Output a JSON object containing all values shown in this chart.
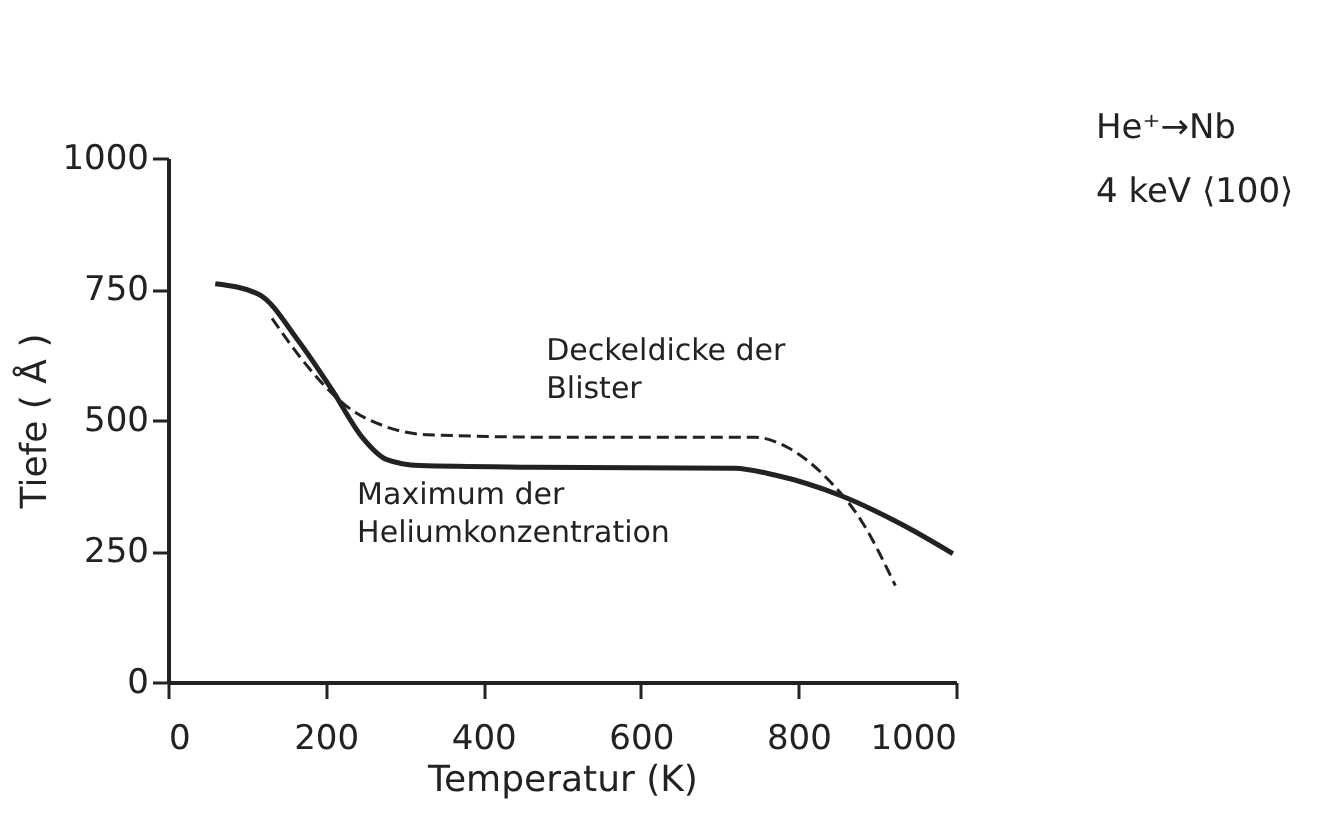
{
  "chart_data": {
    "type": "line",
    "xlabel": "Temperatur   (K)",
    "ylabel": "Tiefe ( Å )",
    "xlim": [
      0,
      1000
    ],
    "ylim": [
      0,
      1000
    ],
    "xticks": [
      0,
      200,
      400,
      600,
      800,
      1000
    ],
    "yticks": [
      0,
      250,
      500,
      750,
      1000
    ],
    "grid": false,
    "legend": false,
    "series": [
      {
        "name": "Maximum der Heliumkonzentration",
        "color": "#222222",
        "line_style": "solid",
        "x": [
          60,
          115,
          166,
          208,
          247,
          277,
          319,
          464,
          719,
          770,
          855,
          932,
          996
        ],
        "values": [
          760,
          740,
          650,
          558,
          466,
          425,
          413,
          410,
          408,
          395,
          355,
          300,
          245
        ]
      },
      {
        "name": "Deckeldicke der Blister",
        "color": "#222222",
        "line_style": "dashed",
        "x": [
          132,
          174,
          226,
          277,
          328,
          498,
          745,
          787,
          838,
          881,
          923
        ],
        "values": [
          694,
          608,
          527,
          487,
          472,
          467,
          467,
          447,
          386,
          305,
          184
        ]
      }
    ],
    "annotations": [
      "He⁺→Nb",
      "4 keV ⟨100⟩"
    ]
  }
}
